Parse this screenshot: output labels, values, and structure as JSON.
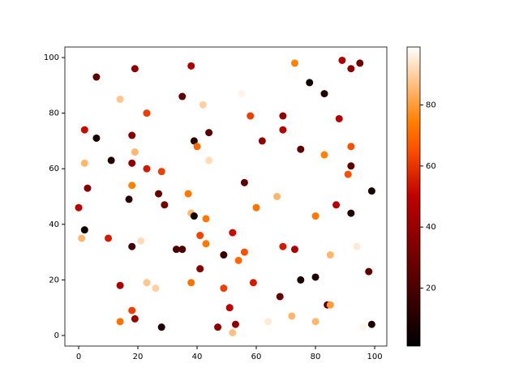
{
  "chart_data": {
    "type": "scatter",
    "colormap": "gist_heat",
    "xlim": [
      -4.66,
      104.1
    ],
    "ylim": [
      -3.8,
      103.8
    ],
    "xticks": [
      0,
      20,
      40,
      60,
      80,
      100
    ],
    "yticks": [
      0,
      20,
      40,
      60,
      80,
      100
    ],
    "clim": [
      1,
      99
    ],
    "cticks": [
      20,
      40,
      60,
      80
    ],
    "x": [
      73,
      89,
      95,
      92,
      19,
      38,
      6,
      78,
      83,
      35,
      14,
      42,
      55,
      23,
      58,
      69,
      88,
      2,
      69,
      44,
      18,
      6,
      62,
      39,
      40,
      92,
      75,
      19,
      83,
      44,
      11,
      2,
      18,
      92,
      23,
      28,
      91,
      56,
      18,
      3,
      99,
      27,
      37,
      67,
      17,
      29,
      87,
      0,
      60,
      38,
      92,
      80,
      39,
      43,
      2,
      41,
      52,
      1,
      10,
      21,
      43,
      18,
      69,
      73,
      33,
      35,
      94,
      56,
      85,
      49,
      54,
      41,
      98,
      80,
      75,
      38,
      59,
      23,
      14,
      26,
      49,
      68,
      84,
      85,
      47,
      51,
      18,
      72,
      19,
      14,
      64,
      80,
      53,
      28,
      52,
      96,
      99
    ],
    "y": [
      98,
      99,
      98,
      96,
      96,
      97,
      93,
      91,
      87,
      86,
      85,
      83,
      87,
      80,
      79,
      79,
      78,
      74,
      74,
      73,
      72,
      71,
      70,
      70,
      68,
      68,
      67,
      66,
      65,
      63,
      63,
      62,
      62,
      61,
      60,
      59,
      58,
      55,
      54,
      53,
      52,
      51,
      51,
      50,
      49,
      47,
      47,
      46,
      46,
      44,
      44,
      43,
      43,
      42,
      38,
      36,
      37,
      35,
      35,
      34,
      33,
      32,
      32,
      31,
      31,
      31,
      32,
      30,
      29,
      29,
      27,
      24,
      23,
      21,
      20,
      19,
      19,
      19,
      18,
      17,
      17,
      14,
      11,
      11,
      3,
      10,
      9,
      7,
      6,
      5,
      5,
      5,
      4,
      3,
      1,
      3,
      4
    ],
    "c": [
      75,
      45,
      30,
      38,
      38,
      45,
      25,
      5,
      10,
      25,
      88,
      90,
      97,
      62,
      62,
      38,
      48,
      52,
      48,
      25,
      35,
      8,
      38,
      12,
      70,
      65,
      25,
      85,
      75,
      92,
      10,
      85,
      38,
      25,
      55,
      62,
      65,
      25,
      75,
      35,
      8,
      28,
      73,
      85,
      12,
      32,
      48,
      50,
      72,
      85,
      10,
      73,
      5,
      73,
      5,
      63,
      52,
      85,
      55,
      92,
      73,
      18,
      55,
      45,
      20,
      20,
      95,
      65,
      85,
      15,
      70,
      35,
      25,
      10,
      8,
      72,
      55,
      88,
      45,
      90,
      62,
      28,
      25,
      80,
      38,
      50,
      62,
      85,
      40,
      72,
      95,
      85,
      38,
      10,
      87,
      97,
      10
    ]
  }
}
